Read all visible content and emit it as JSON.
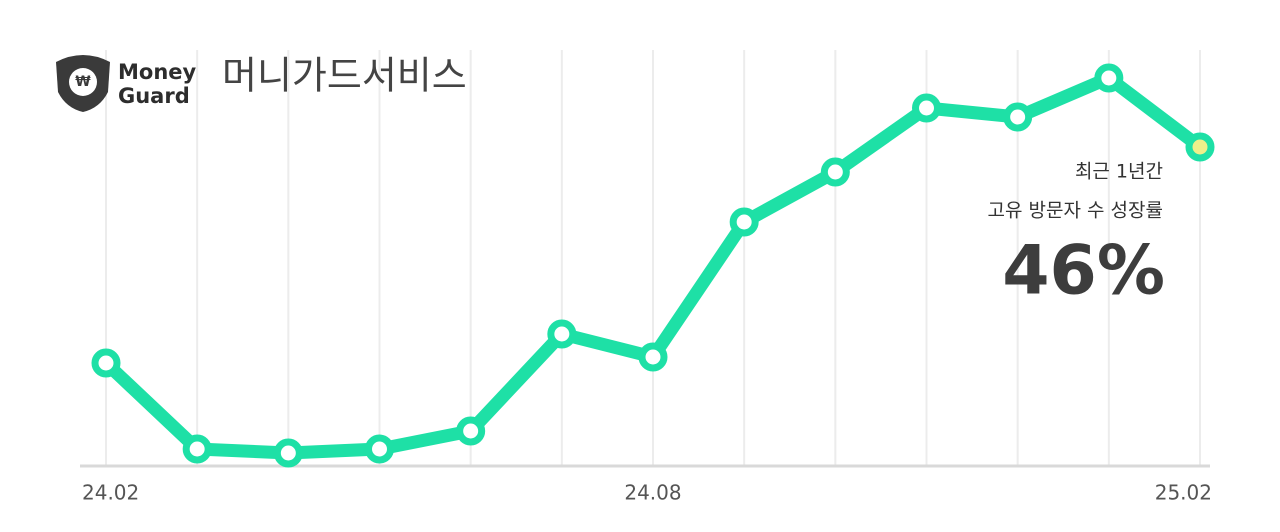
{
  "logo": {
    "lines": [
      "Money",
      "Guard"
    ]
  },
  "chart_data": {
    "type": "line",
    "title": "머니가드서비스",
    "categories": [
      "24.02",
      null,
      null,
      null,
      null,
      null,
      "24.08",
      null,
      null,
      null,
      null,
      null,
      "25.02"
    ],
    "values": [
      103,
      17,
      13,
      17,
      35,
      132,
      109,
      244,
      294,
      358,
      349,
      388,
      319
    ],
    "color": "#1ee0a6",
    "marker_fill": "#ffffff",
    "highlight_fill": "#eef08a",
    "highlight_index": 12,
    "ylim": [
      0,
      400
    ],
    "grid": true,
    "annotation": {
      "lines": [
        "최근 1년간",
        "고유 방문자 수 성장률"
      ],
      "value": "46%"
    }
  }
}
